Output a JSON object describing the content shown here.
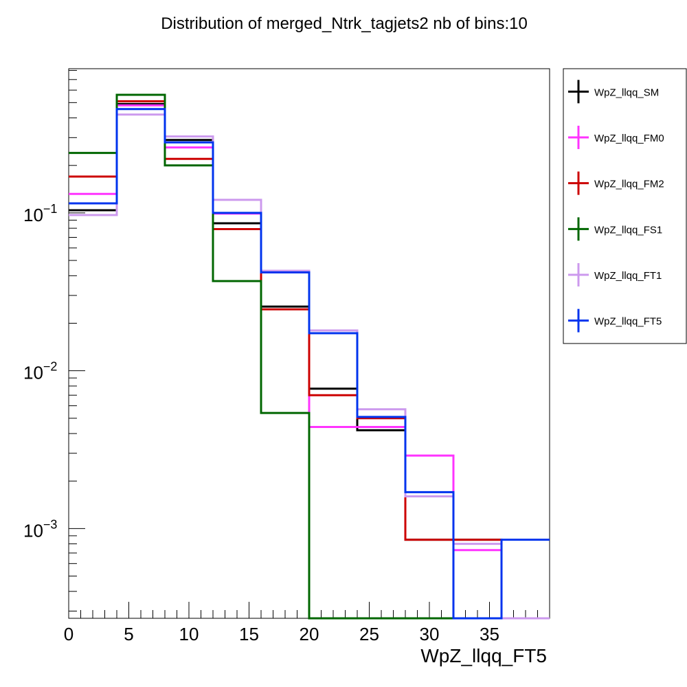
{
  "chart_data": {
    "type": "line",
    "title": "Distribution of merged_Ntrk_tagjets2 nb of bins:10",
    "xlabel": "WpZ_llqq_FT5",
    "ylabel": "",
    "xlim": [
      0,
      40
    ],
    "ylim": [
      0.00027,
      0.82
    ],
    "log_y": true,
    "grid": false,
    "legend_position": "outside-right",
    "bin_edges": [
      0,
      4,
      8,
      12,
      16,
      20,
      24,
      28,
      32,
      36,
      40
    ],
    "x_ticks": [
      "0",
      "5",
      "10",
      "15",
      "20",
      "25",
      "30",
      "35"
    ],
    "y_ticks": [
      {
        "value": 0.1,
        "base": "10",
        "exp": "−1"
      },
      {
        "value": 0.01,
        "base": "10",
        "exp": "−2"
      },
      {
        "value": 0.001,
        "base": "10",
        "exp": "−3"
      }
    ],
    "series": [
      {
        "name": "WpZ_llqq_SM",
        "color": "#000000",
        "values": [
          0.104,
          0.49,
          0.29,
          0.086,
          0.0255,
          0.0077,
          0.0042,
          0.00085,
          0.00085,
          0
        ]
      },
      {
        "name": "WpZ_llqq_FM0",
        "color": "#ff33ff",
        "values": [
          0.132,
          0.48,
          0.26,
          0.099,
          0.042,
          0.0044,
          0.0044,
          0.0029,
          0.00073,
          0
        ]
      },
      {
        "name": "WpZ_llqq_FM2",
        "color": "#cc0000",
        "values": [
          0.17,
          0.51,
          0.22,
          0.079,
          0.0245,
          0.007,
          0.005,
          0.00085,
          0.00085,
          0
        ]
      },
      {
        "name": "WpZ_llqq_FS1",
        "color": "#006600",
        "values": [
          0.24,
          0.56,
          0.2,
          0.037,
          0.0054,
          0,
          0,
          0,
          0,
          0
        ]
      },
      {
        "name": "WpZ_llqq_FT1",
        "color": "#cc99ee",
        "values": [
          0.097,
          0.42,
          0.305,
          0.121,
          0.043,
          0.018,
          0.0057,
          0.0016,
          0.0008,
          0
        ]
      },
      {
        "name": "WpZ_llqq_FT5",
        "color": "#0033ee",
        "values": [
          0.115,
          0.455,
          0.28,
          0.1,
          0.042,
          0.0173,
          0.0051,
          0.0017,
          0,
          0.00085
        ]
      }
    ]
  }
}
